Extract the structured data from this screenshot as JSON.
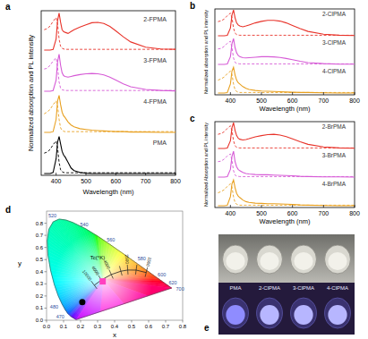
{
  "chart_data": [
    {
      "type": "line",
      "title": "a",
      "x_label": "Wavelength (nm)",
      "y_label": "Normalized absorption and PL intensity",
      "xlim": [
        350,
        800
      ],
      "xticks": [
        400,
        500,
        600,
        700,
        800
      ],
      "ylim": [
        0,
        1
      ],
      "tick_labels": "x",
      "x": [
        360,
        370,
        380,
        390,
        400,
        405,
        410,
        415,
        420,
        425,
        430,
        440,
        450,
        460,
        480,
        500,
        520,
        540,
        560,
        580,
        600,
        625,
        650,
        700,
        750,
        800
      ],
      "samples": [
        {
          "name": "2-FPMA",
          "color": "#e8332a",
          "pl": [
            0,
            0,
            0,
            0.02,
            0.3,
            0.8,
            1.0,
            0.75,
            0.55,
            0.5,
            0.48,
            0.45,
            0.5,
            0.55,
            0.62,
            0.68,
            0.74,
            0.75,
            0.72,
            0.64,
            0.52,
            0.36,
            0.22,
            0.08,
            0.03,
            0.02
          ],
          "absorption": [
            0.55,
            0.58,
            0.65,
            0.78,
            0.88,
            0.7,
            0.3,
            0.1,
            0.05,
            0.03,
            0.02,
            0.02,
            0.02,
            0.02,
            0.02,
            0.02,
            0.02,
            0.02,
            0.02,
            0.02,
            0.02,
            0.02,
            0.02,
            0.02,
            0.02,
            0.02
          ]
        },
        {
          "name": "3-FPMA",
          "color": "#d65ad6",
          "pl": [
            0,
            0,
            0,
            0.02,
            0.3,
            0.8,
            1.0,
            0.7,
            0.5,
            0.42,
            0.4,
            0.38,
            0.4,
            0.42,
            0.45,
            0.47,
            0.48,
            0.47,
            0.44,
            0.38,
            0.3,
            0.2,
            0.12,
            0.05,
            0.02,
            0.01
          ],
          "absorption": [
            0.6,
            0.62,
            0.7,
            0.82,
            0.9,
            0.65,
            0.25,
            0.08,
            0.04,
            0.03,
            0.02,
            0.02,
            0.02,
            0.02,
            0.02,
            0.02,
            0.02,
            0.02,
            0.02,
            0.02,
            0.02,
            0.02,
            0.02,
            0.02,
            0.02,
            0.02
          ]
        },
        {
          "name": "4-FPMA",
          "color": "#e8a020",
          "pl": [
            0,
            0,
            0,
            0.02,
            0.35,
            0.85,
            1.0,
            0.75,
            0.55,
            0.45,
            0.4,
            0.28,
            0.2,
            0.15,
            0.1,
            0.08,
            0.06,
            0.05,
            0.04,
            0.03,
            0.02,
            0.02,
            0.01,
            0.01,
            0,
            0
          ],
          "absorption": [
            0.5,
            0.55,
            0.62,
            0.75,
            0.85,
            0.72,
            0.35,
            0.12,
            0.06,
            0.03,
            0.02,
            0.02,
            0.02,
            0.02,
            0.02,
            0.02,
            0.02,
            0.02,
            0.02,
            0.02,
            0.02,
            0.02,
            0.02,
            0.02,
            0.02,
            0.02
          ]
        },
        {
          "name": "PMA",
          "color": "#000000",
          "pl": [
            0,
            0,
            0,
            0.03,
            0.4,
            0.85,
            1.0,
            0.8,
            0.6,
            0.5,
            0.45,
            0.3,
            0.15,
            0.08,
            0.03,
            0.01,
            0,
            0,
            0,
            0,
            0,
            0,
            0,
            0,
            0,
            0
          ],
          "absorption": [
            0.55,
            0.58,
            0.65,
            0.78,
            0.88,
            0.7,
            0.3,
            0.1,
            0.05,
            0.03,
            0.02,
            0.02,
            0.02,
            0.02,
            0.02,
            0.02,
            0.02,
            0.02,
            0.02,
            0.02,
            0.02,
            0.02,
            0.02,
            0.02,
            0.02,
            0.02
          ]
        }
      ]
    },
    {
      "type": "line",
      "title": "b",
      "x_label": "Wavelength (nm)",
      "y_label": "Normalized absorption and PL intensity",
      "xlim": [
        350,
        800
      ],
      "xticks": [
        400,
        500,
        600,
        700,
        800
      ],
      "ylim": [
        0,
        1
      ],
      "tick_labels": "x",
      "x": [
        360,
        370,
        380,
        390,
        400,
        405,
        410,
        415,
        420,
        425,
        430,
        440,
        450,
        460,
        480,
        500,
        520,
        540,
        560,
        580,
        600,
        625,
        650,
        700,
        750,
        800
      ],
      "samples": [
        {
          "name": "2-ClPMA",
          "color": "#e8332a",
          "pl": [
            0,
            0,
            0,
            0.02,
            0.3,
            0.8,
            1.0,
            0.7,
            0.5,
            0.42,
            0.38,
            0.35,
            0.38,
            0.42,
            0.5,
            0.56,
            0.6,
            0.6,
            0.57,
            0.5,
            0.4,
            0.28,
            0.17,
            0.06,
            0.02,
            0.01
          ],
          "absorption": [
            0.55,
            0.58,
            0.65,
            0.78,
            0.88,
            0.7,
            0.3,
            0.1,
            0.05,
            0.03,
            0.02,
            0.02,
            0.02,
            0.02,
            0.02,
            0.02,
            0.02,
            0.02,
            0.02,
            0.02,
            0.02,
            0.02,
            0.02,
            0.02,
            0.02,
            0.02
          ]
        },
        {
          "name": "3-ClPMA",
          "color": "#d65ad6",
          "pl": [
            0,
            0,
            0,
            0.02,
            0.3,
            0.8,
            1.0,
            0.65,
            0.45,
            0.35,
            0.3,
            0.26,
            0.25,
            0.26,
            0.28,
            0.3,
            0.3,
            0.29,
            0.27,
            0.23,
            0.18,
            0.12,
            0.07,
            0.03,
            0.01,
            0.01
          ],
          "absorption": [
            0.6,
            0.62,
            0.7,
            0.82,
            0.9,
            0.65,
            0.25,
            0.08,
            0.04,
            0.03,
            0.02,
            0.02,
            0.02,
            0.02,
            0.02,
            0.02,
            0.02,
            0.02,
            0.02,
            0.02,
            0.02,
            0.02,
            0.02,
            0.02,
            0.02,
            0.02
          ]
        },
        {
          "name": "4-ClPMA",
          "color": "#e8a020",
          "pl": [
            0,
            0,
            0,
            0.02,
            0.35,
            0.85,
            1.0,
            0.7,
            0.5,
            0.4,
            0.35,
            0.25,
            0.18,
            0.14,
            0.1,
            0.08,
            0.07,
            0.06,
            0.05,
            0.04,
            0.03,
            0.02,
            0.02,
            0.01,
            0,
            0
          ],
          "absorption": [
            0.5,
            0.55,
            0.62,
            0.75,
            0.85,
            0.72,
            0.35,
            0.12,
            0.06,
            0.03,
            0.02,
            0.02,
            0.02,
            0.02,
            0.02,
            0.02,
            0.02,
            0.02,
            0.02,
            0.02,
            0.02,
            0.02,
            0.02,
            0.02,
            0.02,
            0.02
          ]
        }
      ]
    },
    {
      "type": "line",
      "title": "c",
      "x_label": "Wavelength (nm)",
      "y_label": "Normalized Absorption and PL intensity",
      "xlim": [
        350,
        800
      ],
      "xticks": [
        400,
        500,
        600,
        700,
        800
      ],
      "ylim": [
        0,
        1
      ],
      "tick_labels": "x",
      "x": [
        360,
        370,
        380,
        390,
        400,
        405,
        410,
        415,
        420,
        425,
        430,
        440,
        450,
        460,
        480,
        500,
        520,
        540,
        560,
        580,
        600,
        625,
        650,
        700,
        750,
        800
      ],
      "samples": [
        {
          "name": "2-BrPMA",
          "color": "#e8332a",
          "pl": [
            0,
            0,
            0,
            0.02,
            0.3,
            0.8,
            1.0,
            0.7,
            0.5,
            0.4,
            0.36,
            0.33,
            0.35,
            0.38,
            0.45,
            0.5,
            0.54,
            0.55,
            0.52,
            0.46,
            0.37,
            0.26,
            0.16,
            0.06,
            0.02,
            0.01
          ],
          "absorption": [
            0.55,
            0.58,
            0.65,
            0.78,
            0.88,
            0.7,
            0.3,
            0.1,
            0.05,
            0.03,
            0.02,
            0.02,
            0.02,
            0.02,
            0.02,
            0.02,
            0.02,
            0.02,
            0.02,
            0.02,
            0.02,
            0.02,
            0.02,
            0.02,
            0.02,
            0.02
          ]
        },
        {
          "name": "3-BrPMA",
          "color": "#d65ad6",
          "pl": [
            0,
            0,
            0,
            0.02,
            0.3,
            0.8,
            1.0,
            0.6,
            0.4,
            0.3,
            0.25,
            0.18,
            0.14,
            0.12,
            0.1,
            0.09,
            0.09,
            0.08,
            0.07,
            0.06,
            0.05,
            0.03,
            0.02,
            0.01,
            0.01,
            0
          ],
          "absorption": [
            0.6,
            0.62,
            0.7,
            0.82,
            0.9,
            0.65,
            0.25,
            0.08,
            0.04,
            0.03,
            0.02,
            0.02,
            0.02,
            0.02,
            0.02,
            0.02,
            0.02,
            0.02,
            0.02,
            0.02,
            0.02,
            0.02,
            0.02,
            0.02,
            0.02,
            0.02
          ]
        },
        {
          "name": "4-BrPMA",
          "color": "#e8a020",
          "pl": [
            0,
            0,
            0,
            0.02,
            0.35,
            0.85,
            1.0,
            0.7,
            0.48,
            0.38,
            0.32,
            0.22,
            0.16,
            0.13,
            0.1,
            0.09,
            0.08,
            0.08,
            0.07,
            0.06,
            0.05,
            0.03,
            0.02,
            0.01,
            0,
            0
          ],
          "absorption": [
            0.5,
            0.55,
            0.62,
            0.75,
            0.85,
            0.72,
            0.35,
            0.12,
            0.06,
            0.03,
            0.02,
            0.02,
            0.02,
            0.02,
            0.02,
            0.02,
            0.02,
            0.02,
            0.02,
            0.02,
            0.02,
            0.02,
            0.02,
            0.02,
            0.02,
            0.02
          ]
        }
      ]
    },
    {
      "type": "chromaticity",
      "title": "d",
      "x_label": "x",
      "y_label": "y",
      "xlim": [
        0,
        0.8
      ],
      "ylim": [
        0,
        0.9
      ],
      "grid": false,
      "xticks": [
        {
          "value": 0,
          "label": "0.0"
        },
        0.1,
        0.2,
        0.3,
        0.4,
        0.5,
        0.6,
        0.7,
        0.8
      ],
      "yticks": [
        {
          "value": 0,
          "label": "0.0"
        },
        0.1,
        0.2,
        0.3,
        0.4,
        0.5,
        0.6,
        0.7,
        0.8
      ],
      "locus": {
        "x": [
          0.1741,
          0.144,
          0.1241,
          0.1096,
          0.0913,
          0.0687,
          0.0454,
          0.0235,
          0.0082,
          0.0039,
          0.0139,
          0.0389,
          0.0743,
          0.1142,
          0.1547,
          0.2296,
          0.3016,
          0.3731,
          0.4441,
          0.5125,
          0.5752,
          0.627,
          0.6915,
          0.7347
        ],
        "y": [
          0.005,
          0.0297,
          0.0578,
          0.0868,
          0.1327,
          0.2007,
          0.295,
          0.4127,
          0.5384,
          0.6548,
          0.7502,
          0.812,
          0.8338,
          0.8262,
          0.8059,
          0.7543,
          0.6923,
          0.6245,
          0.5547,
          0.4866,
          0.4242,
          0.3725,
          0.3083,
          0.2653
        ],
        "labels": [
          null,
          null,
          470,
          null,
          480,
          null,
          null,
          null,
          null,
          null,
          null,
          null,
          520,
          null,
          null,
          540,
          null,
          560,
          null,
          580,
          null,
          600,
          620,
          700
        ]
      },
      "planckian": {
        "title": "Tc(°K)",
        "x": [
          0.2807,
          0.3221,
          0.3805,
          0.4369,
          0.477,
          0.5267,
          0.5857
        ],
        "y": [
          0.2884,
          0.3318,
          0.3768,
          0.4041,
          0.4137,
          0.4133,
          0.3931
        ],
        "labels": [
          10000,
          6000,
          4000,
          null,
          2500,
          null,
          1500
        ]
      },
      "points": [
        {
          "x": 0.21,
          "y": 0.15,
          "color": "#000000",
          "marker": "circle"
        },
        {
          "x": 0.33,
          "y": 0.32,
          "color": "#ff40c0",
          "marker": "square"
        }
      ]
    }
  ],
  "photo": {
    "title": "e",
    "labels": [
      "PMA",
      "2-ClPMA",
      "3-ClPMA",
      "4-ClPMA"
    ]
  }
}
